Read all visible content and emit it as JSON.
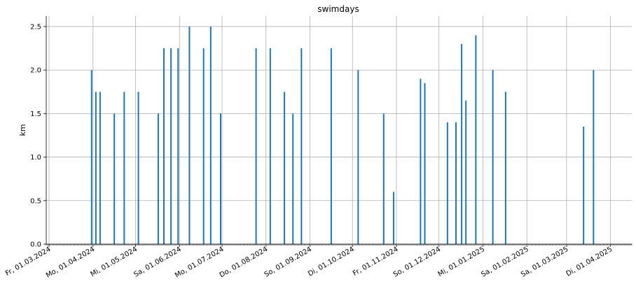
{
  "chart_data": {
    "type": "bar",
    "title": "swimdays",
    "xlabel": "",
    "ylabel": "km",
    "x_axis": "date",
    "xlim": [
      "2024-02-28",
      "2025-04-16"
    ],
    "ylim": [
      0,
      2.62
    ],
    "grid": true,
    "bar_color": "#1f77b4",
    "grid_color": "#b0b0b0",
    "y_ticks": [
      {
        "value": 0.0,
        "label": "0.0"
      },
      {
        "value": 0.5,
        "label": "0.5"
      },
      {
        "value": 1.0,
        "label": "1.0"
      },
      {
        "value": 1.5,
        "label": "1.5"
      },
      {
        "value": 2.0,
        "label": "2.0"
      },
      {
        "value": 2.5,
        "label": "2.5"
      }
    ],
    "x_ticks": [
      {
        "date": "2024-03-01",
        "label": "Fr, 01.03.2024"
      },
      {
        "date": "2024-04-01",
        "label": "Mo, 01.04.2024"
      },
      {
        "date": "2024-05-01",
        "label": "Mi, 01.05.2024"
      },
      {
        "date": "2024-06-01",
        "label": "Sa, 01.06.2024"
      },
      {
        "date": "2024-07-01",
        "label": "Mo, 01.07.2024"
      },
      {
        "date": "2024-08-01",
        "label": "Do, 01.08.2024"
      },
      {
        "date": "2024-09-01",
        "label": "So, 01.09.2024"
      },
      {
        "date": "2024-10-01",
        "label": "Di, 01.10.2024"
      },
      {
        "date": "2024-11-01",
        "label": "Fr, 01.11.2024"
      },
      {
        "date": "2024-12-01",
        "label": "So, 01.12.2024"
      },
      {
        "date": "2025-01-01",
        "label": "Mi, 01.01.2025"
      },
      {
        "date": "2025-02-01",
        "label": "Sa, 01.02.2025"
      },
      {
        "date": "2025-03-01",
        "label": "Sa, 01.03.2025"
      },
      {
        "date": "2025-04-01",
        "label": "Di, 01.04.2025"
      }
    ],
    "points": [
      {
        "date": "2024-03-31",
        "value": 2.0
      },
      {
        "date": "2024-04-03",
        "value": 1.75
      },
      {
        "date": "2024-04-06",
        "value": 1.75
      },
      {
        "date": "2024-04-16",
        "value": 1.5
      },
      {
        "date": "2024-04-23",
        "value": 1.75
      },
      {
        "date": "2024-05-03",
        "value": 1.75
      },
      {
        "date": "2024-05-17",
        "value": 1.5
      },
      {
        "date": "2024-05-21",
        "value": 2.25
      },
      {
        "date": "2024-05-26",
        "value": 2.25
      },
      {
        "date": "2024-05-31",
        "value": 2.25
      },
      {
        "date": "2024-06-08",
        "value": 2.5
      },
      {
        "date": "2024-06-18",
        "value": 2.25
      },
      {
        "date": "2024-06-23",
        "value": 2.5
      },
      {
        "date": "2024-06-30",
        "value": 1.5
      },
      {
        "date": "2024-07-25",
        "value": 2.25
      },
      {
        "date": "2024-08-04",
        "value": 2.25
      },
      {
        "date": "2024-08-14",
        "value": 1.75
      },
      {
        "date": "2024-08-20",
        "value": 1.5
      },
      {
        "date": "2024-08-26",
        "value": 2.25
      },
      {
        "date": "2024-09-16",
        "value": 2.25
      },
      {
        "date": "2024-10-05",
        "value": 2.0
      },
      {
        "date": "2024-10-23",
        "value": 1.5
      },
      {
        "date": "2024-10-30",
        "value": 0.6
      },
      {
        "date": "2024-11-18",
        "value": 1.9
      },
      {
        "date": "2024-11-21",
        "value": 1.85
      },
      {
        "date": "2024-12-07",
        "value": 1.4
      },
      {
        "date": "2024-12-13",
        "value": 1.4
      },
      {
        "date": "2024-12-17",
        "value": 2.3
      },
      {
        "date": "2024-12-20",
        "value": 1.65
      },
      {
        "date": "2024-12-27",
        "value": 2.4
      },
      {
        "date": "2025-01-08",
        "value": 2.0
      },
      {
        "date": "2025-01-17",
        "value": 1.75
      },
      {
        "date": "2025-03-13",
        "value": 1.35
      },
      {
        "date": "2025-03-20",
        "value": 2.0
      }
    ]
  }
}
